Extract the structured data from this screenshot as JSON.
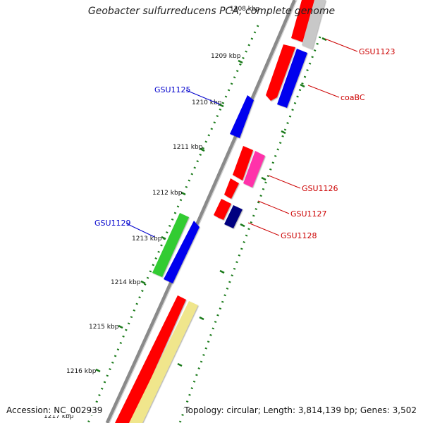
{
  "title": "Geobacter sulfurreducens PCA, complete genome",
  "accession": "Accession: NC_002939",
  "summary": "Topology: circular; Length: 3,814,139 bp; Genes: 3,502",
  "ticks": [
    "1208 kbp",
    "1209 kbp",
    "1210 kbp",
    "1211 kbp",
    "1212 kbp",
    "1213 kbp",
    "1214 kbp",
    "1215 kbp",
    "1216 kbp",
    "1217 kbp"
  ],
  "gene_labels": [
    {
      "text": "GSU1123",
      "color": "#cc0000"
    },
    {
      "text": "coaBC",
      "color": "#cc0000"
    },
    {
      "text": "GSU1125",
      "color": "#0000cc"
    },
    {
      "text": "GSU1126",
      "color": "#cc0000"
    },
    {
      "text": "GSU1127",
      "color": "#cc0000"
    },
    {
      "text": "GSU1128",
      "color": "#cc0000"
    },
    {
      "text": "GSU1129",
      "color": "#0000cc"
    }
  ],
  "colors": {
    "backbone": "#8a8a8a",
    "tick": "#1a7a1a",
    "red": "#ff0000",
    "blue": "#0000ee",
    "navy": "#000080",
    "pink": "#ff33aa",
    "green": "#33cc33",
    "gray": "#c8c8c8",
    "khaki": "#f0e68c"
  }
}
